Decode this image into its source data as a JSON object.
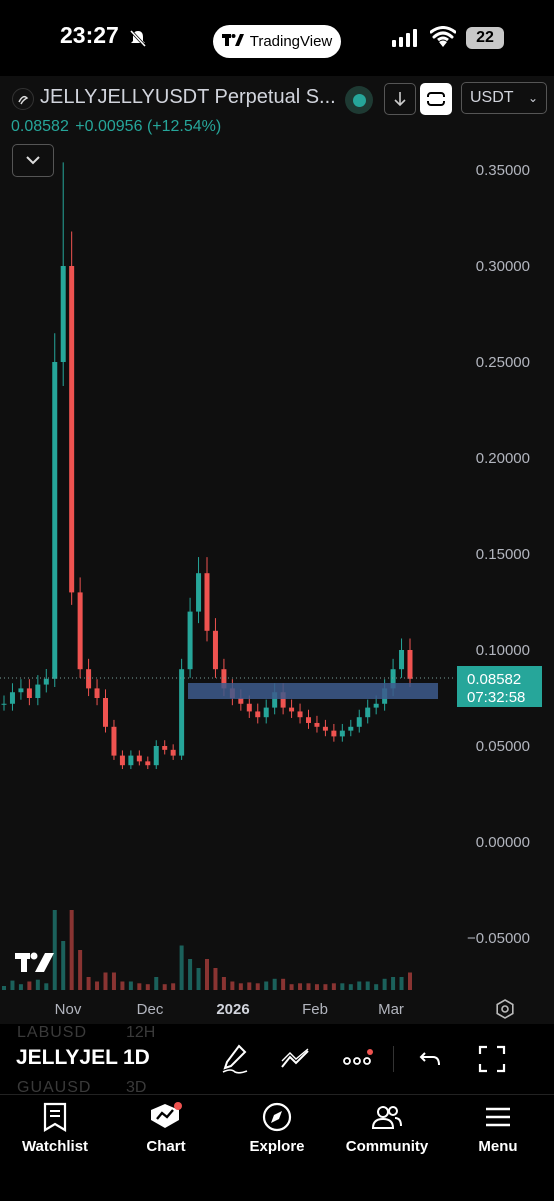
{
  "status_bar": {
    "time": "23:27",
    "battery": "22",
    "app_pill": "TradingView"
  },
  "header": {
    "symbol_title": "JELLYJELLYUSDT Perpetual S...",
    "currency": "USDT",
    "last_price": "0.08582",
    "change": "+0.00956",
    "change_pct": "(+12.54%)"
  },
  "price_axis": {
    "labels": [
      "0.35000",
      "0.30000",
      "0.25000",
      "0.20000",
      "0.15000",
      "0.10000",
      "0.05000",
      "0.00000",
      "−0.05000"
    ],
    "current_price": "0.08582",
    "countdown": "07:32:58"
  },
  "time_axis": {
    "labels": [
      "Nov",
      "Dec",
      "2026",
      "Feb",
      "Mar"
    ]
  },
  "chart_data": {
    "type": "candlestick",
    "ylim": [
      -0.07,
      0.37
    ],
    "x_ticks": [
      "Nov",
      "Dec",
      "2026",
      "Feb",
      "Mar"
    ],
    "current_price": 0.08582,
    "highlight_zone": [
      0.077,
      0.085
    ],
    "approx_closes": [
      0.072,
      0.078,
      0.08,
      0.075,
      0.082,
      0.085,
      0.25,
      0.3,
      0.13,
      0.09,
      0.08,
      0.075,
      0.06,
      0.045,
      0.04,
      0.045,
      0.042,
      0.04,
      0.05,
      0.048,
      0.045,
      0.09,
      0.12,
      0.14,
      0.11,
      0.09,
      0.08,
      0.075,
      0.072,
      0.068,
      0.065,
      0.07,
      0.078,
      0.07,
      0.068,
      0.065,
      0.062,
      0.06,
      0.058,
      0.055,
      0.058,
      0.06,
      0.065,
      0.07,
      0.072,
      0.08,
      0.09,
      0.1,
      0.085
    ]
  },
  "toolbar": {
    "symbol": "JELLYJEL",
    "interval": "1D",
    "faded_symbol_above": "LABUSD",
    "faded_interval_above": "12H",
    "faded_symbol_below": "GUAUSD",
    "faded_interval_below": "3D"
  },
  "nav": {
    "items": [
      {
        "label": "Watchlist",
        "icon": "bookmark-icon"
      },
      {
        "label": "Chart",
        "icon": "chart-icon"
      },
      {
        "label": "Explore",
        "icon": "compass-icon"
      },
      {
        "label": "Community",
        "icon": "people-icon"
      },
      {
        "label": "Menu",
        "icon": "menu-icon"
      }
    ]
  },
  "colors": {
    "up": "#26a69a",
    "down": "#ef5350",
    "zone": "#3d5a8c",
    "background": "#0f0f0f"
  }
}
